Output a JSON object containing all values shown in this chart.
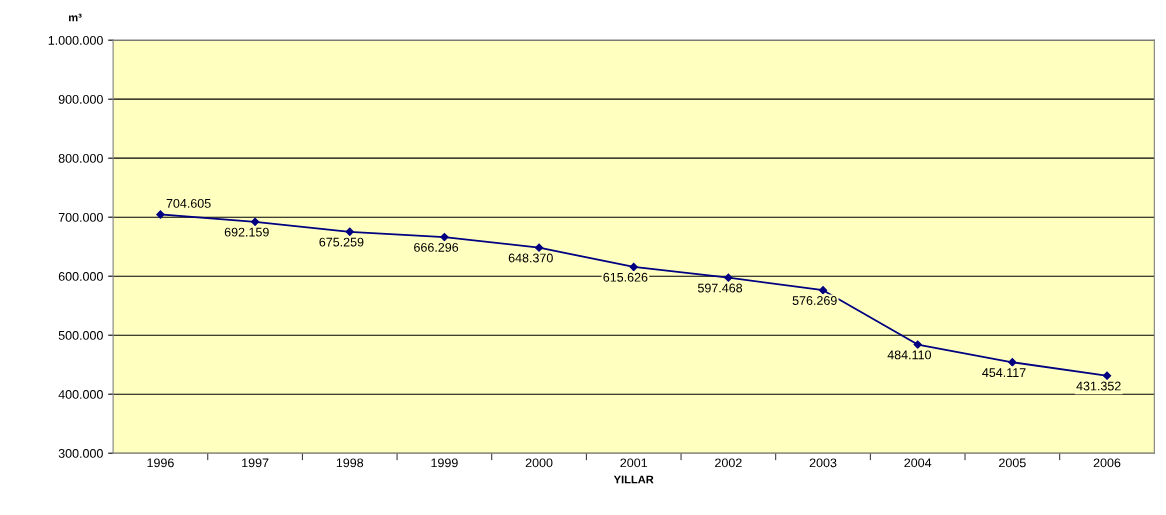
{
  "chart_data": {
    "type": "line",
    "ylabel": "m³",
    "xlabel": "YILLAR",
    "categories": [
      "1996",
      "1997",
      "1998",
      "1999",
      "2000",
      "2001",
      "2002",
      "2003",
      "2004",
      "2005",
      "2006"
    ],
    "series": [
      {
        "color": "#000080",
        "values": [
          704605,
          692159,
          675259,
          666296,
          648370,
          615626,
          597468,
          576269,
          484110,
          454117,
          431352
        ],
        "value_labels": [
          "704.605",
          "692.159",
          "675.259",
          "666.296",
          "648.370",
          "615.626",
          "597.468",
          "576.269",
          "484.110",
          "454.117",
          "431.352"
        ]
      }
    ],
    "ylim": [
      300000,
      1000000
    ],
    "yticks": [
      {
        "value": 300000,
        "label": "300.000"
      },
      {
        "value": 400000,
        "label": "400.000"
      },
      {
        "value": 500000,
        "label": "500.000"
      },
      {
        "value": 600000,
        "label": "600.000"
      },
      {
        "value": 700000,
        "label": "700.000"
      },
      {
        "value": 800000,
        "label": "800.000"
      },
      {
        "value": 900000,
        "label": "900.000"
      },
      {
        "value": 1000000,
        "label": "1.000.000"
      }
    ],
    "grid": "y",
    "marker": "diamond",
    "line_style": "solid",
    "legend": false
  }
}
